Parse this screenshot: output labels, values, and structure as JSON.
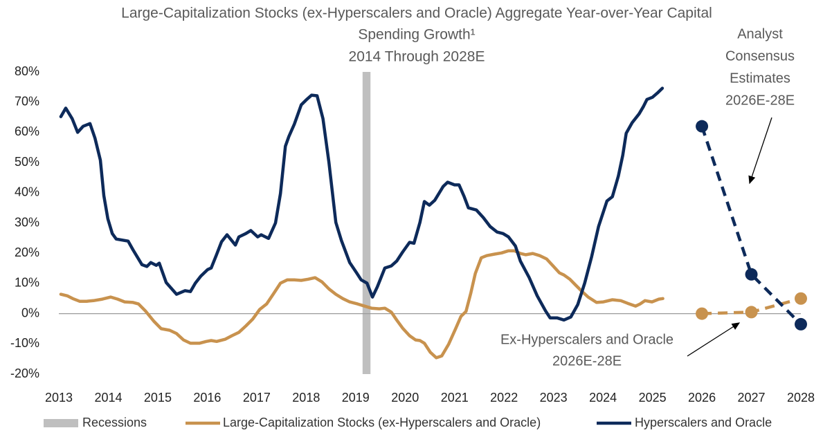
{
  "chart_data": {
    "type": "line",
    "title": [
      "Large-Capitalization Stocks (ex-Hyperscalers and Oracle) Aggregate Year-over-Year Capital",
      "Spending Growth¹"
    ],
    "subtitle": "2014 Through 2028E",
    "annotations": [
      {
        "lines": [
          "Analyst",
          "Consensus",
          "Estimates",
          "2026E-28E"
        ]
      },
      {
        "lines": [
          "Ex-Hyperscalers and Oracle",
          "2026E-28E"
        ]
      }
    ],
    "xlim": [
      2013,
      2028
    ],
    "xticks": [
      2013,
      2014,
      2015,
      2016,
      2017,
      2018,
      2019,
      2020,
      2021,
      2022,
      2023,
      2024,
      2025,
      2026,
      2027,
      2028
    ],
    "ylim": [
      -20,
      80
    ],
    "yticks": [
      {
        "value": -20,
        "label": "-20%"
      },
      {
        "value": -10,
        "label": "-10%"
      },
      {
        "value": 0,
        "label": "0%"
      },
      {
        "value": 10,
        "label": "10%"
      },
      {
        "value": 20,
        "label": "20%"
      },
      {
        "value": 30,
        "label": "30%"
      },
      {
        "value": 40,
        "label": "40%"
      },
      {
        "value": 50,
        "label": "50%"
      },
      {
        "value": 60,
        "label": "60%"
      },
      {
        "value": 70,
        "label": "70%"
      },
      {
        "value": 80,
        "label": "80%"
      }
    ],
    "grid": false,
    "legend": "bottom",
    "recession": {
      "name": "Recessions",
      "color": "#bfbfbf",
      "start": 2019.14,
      "end": 2019.3
    },
    "series": [
      {
        "name": "Large-Capitalization Stocks (ex-Hyperscalers and Oracle)",
        "color": "#c8924e",
        "x": [
          2013.04,
          2013.17,
          2013.28,
          2013.42,
          2013.56,
          2013.7,
          2013.88,
          2014.05,
          2014.19,
          2014.33,
          2014.5,
          2014.61,
          2014.75,
          2014.92,
          2015.07,
          2015.24,
          2015.38,
          2015.52,
          2015.66,
          2015.84,
          2015.98,
          2016.08,
          2016.19,
          2016.36,
          2016.5,
          2016.64,
          2016.78,
          2016.92,
          2017.06,
          2017.2,
          2017.34,
          2017.48,
          2017.62,
          2017.76,
          2017.9,
          2018.04,
          2018.18,
          2018.32,
          2018.46,
          2018.6,
          2018.74,
          2018.88,
          2019.04,
          2019.18,
          2019.32,
          2019.48,
          2019.59,
          2019.72,
          2019.83,
          2019.95,
          2020.09,
          2020.21,
          2020.3,
          2020.39,
          2020.51,
          2020.63,
          2020.74,
          2020.88,
          2021.02,
          2021.13,
          2021.23,
          2021.33,
          2021.42,
          2021.54,
          2021.65,
          2021.81,
          2021.95,
          2022.09,
          2022.21,
          2022.33,
          2022.44,
          2022.58,
          2022.72,
          2022.86,
          2022.98,
          2023.12,
          2023.21,
          2023.33,
          2023.45,
          2023.56,
          2023.7,
          2023.87,
          2024.01,
          2024.19,
          2024.36,
          2024.5,
          2024.66,
          2024.75,
          2024.85,
          2024.99,
          2025.13,
          2025.21
        ],
        "values": [
          6.4,
          5.9,
          5.0,
          4.1,
          4.1,
          4.3,
          4.8,
          5.5,
          4.8,
          3.9,
          3.7,
          3.2,
          0.9,
          -2.5,
          -5.0,
          -5.5,
          -6.6,
          -8.7,
          -9.8,
          -9.8,
          -9.2,
          -8.9,
          -9.2,
          -8.5,
          -7.3,
          -6.2,
          -4.1,
          -1.8,
          1.4,
          3.2,
          6.6,
          10.1,
          11.2,
          11.2,
          11.0,
          11.4,
          11.9,
          10.5,
          8.2,
          6.4,
          5.0,
          3.9,
          3.2,
          2.5,
          1.8,
          1.6,
          1.8,
          0.5,
          -2.1,
          -4.8,
          -7.3,
          -8.7,
          -8.9,
          -9.8,
          -12.8,
          -14.6,
          -14.0,
          -10.1,
          -5.0,
          -0.9,
          0.7,
          6.9,
          13.3,
          18.5,
          19.2,
          19.7,
          20.1,
          20.8,
          20.8,
          19.9,
          19.5,
          19.9,
          19.2,
          18.1,
          16.0,
          13.5,
          12.8,
          11.4,
          9.4,
          7.6,
          5.5,
          3.7,
          3.9,
          4.6,
          4.3,
          3.4,
          2.5,
          3.2,
          4.3,
          3.9,
          4.8,
          5.0
        ]
      },
      {
        "name": "Hyperscalers and Oracle",
        "color": "#0d2a5a",
        "x": [
          2013.04,
          2013.14,
          2013.27,
          2013.38,
          2013.49,
          2013.63,
          2013.73,
          2013.84,
          2013.91,
          2013.99,
          2014.08,
          2014.16,
          2014.4,
          2014.5,
          2014.68,
          2014.78,
          2014.86,
          2014.97,
          2015.03,
          2015.17,
          2015.38,
          2015.55,
          2015.66,
          2015.76,
          2015.87,
          2016.01,
          2016.08,
          2016.18,
          2016.29,
          2016.4,
          2016.57,
          2016.64,
          2016.78,
          2016.88,
          2017.02,
          2017.09,
          2017.24,
          2017.38,
          2017.48,
          2017.58,
          2017.65,
          2017.76,
          2017.9,
          2018.0,
          2018.11,
          2018.22,
          2018.34,
          2018.46,
          2018.6,
          2018.71,
          2018.88,
          2019.02,
          2019.11,
          2019.23,
          2019.34,
          2019.44,
          2019.59,
          2019.72,
          2019.83,
          2019.95,
          2020.09,
          2020.18,
          2020.3,
          2020.39,
          2020.49,
          2020.6,
          2020.77,
          2020.86,
          2021.0,
          2021.09,
          2021.19,
          2021.28,
          2021.44,
          2021.58,
          2021.72,
          2021.86,
          2021.98,
          2022.09,
          2022.23,
          2022.33,
          2022.51,
          2022.67,
          2022.84,
          2022.93,
          2023.07,
          2023.21,
          2023.35,
          2023.49,
          2023.63,
          2023.77,
          2023.91,
          2024.08,
          2024.19,
          2024.31,
          2024.4,
          2024.47,
          2024.59,
          2024.73,
          2024.82,
          2024.89,
          2025.0,
          2025.1,
          2025.2
        ],
        "values": [
          65.2,
          68.0,
          64.5,
          60.0,
          62.0,
          62.9,
          58.1,
          50.8,
          39.1,
          31.4,
          26.5,
          24.7,
          24.0,
          21.1,
          16.2,
          15.6,
          16.9,
          16.0,
          16.7,
          10.3,
          6.4,
          7.6,
          7.3,
          10.1,
          12.4,
          14.6,
          15.1,
          19.2,
          23.8,
          26.1,
          22.7,
          25.4,
          26.5,
          27.5,
          25.4,
          26.1,
          24.9,
          30.0,
          39.8,
          55.4,
          58.6,
          62.7,
          69.1,
          70.7,
          72.3,
          72.1,
          64.5,
          50.1,
          30.2,
          24.3,
          16.9,
          13.5,
          11.2,
          10.1,
          5.5,
          8.9,
          15.1,
          15.8,
          17.4,
          20.4,
          23.6,
          23.3,
          30.2,
          37.1,
          35.9,
          37.5,
          42.1,
          43.5,
          42.6,
          42.6,
          38.9,
          35.0,
          34.3,
          31.8,
          28.8,
          27.0,
          26.5,
          25.4,
          22.4,
          17.4,
          11.9,
          5.9,
          0.9,
          -1.4,
          -1.4,
          -2.1,
          -1.1,
          3.0,
          10.1,
          18.8,
          28.8,
          37.3,
          38.7,
          45.5,
          52.4,
          59.7,
          63.2,
          66.1,
          68.6,
          70.9,
          71.6,
          73.0,
          74.6
        ]
      }
    ],
    "estimates": [
      {
        "color": "#c8924e",
        "dashed": true,
        "x": [
          2026,
          2027,
          2028
        ],
        "values": [
          0,
          0.5,
          5
        ]
      },
      {
        "color": "#0d2a5a",
        "dashed": true,
        "x": [
          2026,
          2027,
          2028
        ],
        "values": [
          62,
          13,
          -3.5
        ]
      }
    ]
  }
}
